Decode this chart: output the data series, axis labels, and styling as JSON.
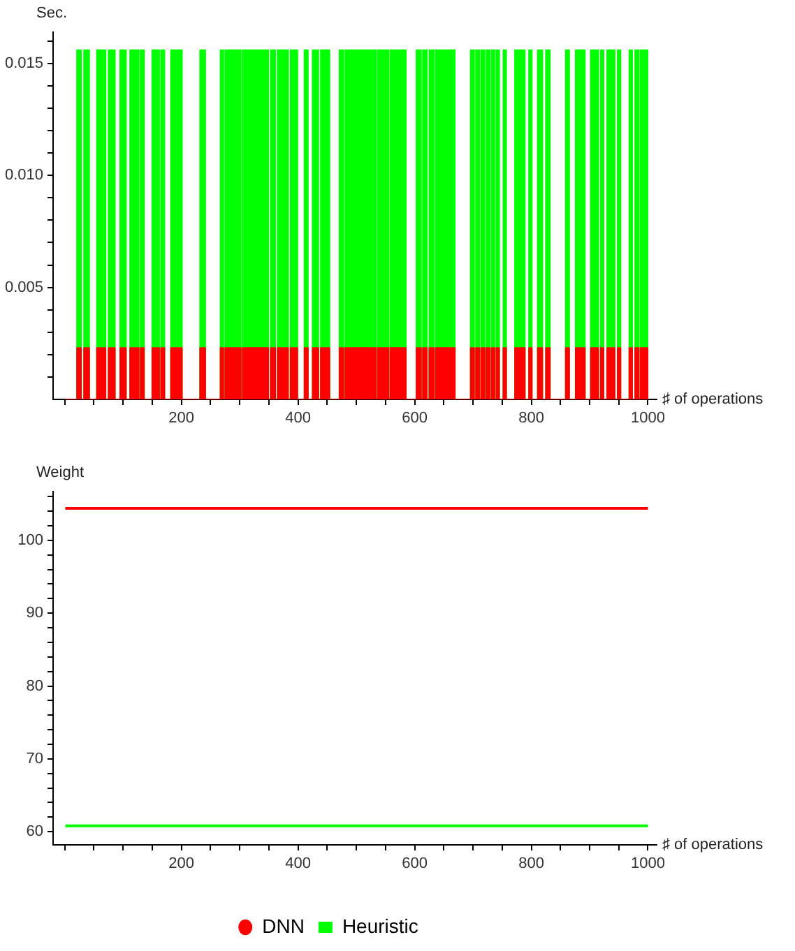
{
  "chart_data": [
    {
      "type": "area",
      "ylabel": "Sec.",
      "xlabel": "♯ of operations",
      "legend": false,
      "grid": false,
      "xlim": [
        -20,
        1015
      ],
      "ylim": [
        0,
        0.0164
      ],
      "xticks": [
        {
          "value": 0,
          "label": null
        },
        {
          "value": 50,
          "label": null
        },
        {
          "value": 100,
          "label": null
        },
        {
          "value": 150,
          "label": null
        },
        200,
        {
          "value": 250,
          "label": null
        },
        {
          "value": 300,
          "label": null
        },
        {
          "value": 350,
          "label": null
        },
        400,
        {
          "value": 450,
          "label": null
        },
        {
          "value": 500,
          "label": null
        },
        {
          "value": 550,
          "label": null
        },
        600,
        {
          "value": 650,
          "label": null
        },
        {
          "value": 700,
          "label": null
        },
        {
          "value": 750,
          "label": null
        },
        800,
        {
          "value": 850,
          "label": null
        },
        {
          "value": 900,
          "label": null
        },
        {
          "value": 950,
          "label": null
        },
        1000
      ],
      "yticks": [
        {
          "value": 0.001,
          "label": null
        },
        {
          "value": 0.002,
          "label": null
        },
        {
          "value": 0.003,
          "label": null
        },
        {
          "value": 0.004,
          "label": null
        },
        0.005,
        {
          "value": 0.006,
          "label": null
        },
        {
          "value": 0.007,
          "label": null
        },
        {
          "value": 0.008,
          "label": null
        },
        {
          "value": 0.009,
          "label": null
        },
        {
          "value": 0.01,
          "label": "0.010"
        },
        {
          "value": 0.011,
          "label": null
        },
        {
          "value": 0.012,
          "label": null
        },
        {
          "value": 0.013,
          "label": null
        },
        {
          "value": 0.014,
          "label": null
        },
        0.015,
        {
          "value": 0.016,
          "label": null
        }
      ],
      "x": [
        1,
        21,
        21,
        28,
        28,
        33,
        33,
        42,
        42,
        55,
        55,
        70,
        70,
        75,
        75,
        86,
        86,
        95,
        95,
        105,
        105,
        112,
        112,
        127,
        127,
        130,
        130,
        136,
        136,
        150,
        150,
        162,
        162,
        165,
        165,
        171,
        171,
        182,
        182,
        201,
        201,
        232,
        232,
        241,
        241,
        267,
        267,
        272,
        272,
        275,
        275,
        302,
        302,
        305,
        305,
        349,
        349,
        353,
        353,
        361,
        361,
        365,
        365,
        383,
        383,
        387,
        387,
        399,
        399,
        411,
        411,
        417,
        417,
        425,
        425,
        435,
        435,
        439,
        439,
        454,
        454,
        471,
        471,
        478,
        478,
        481,
        481,
        489,
        489,
        491,
        491,
        534,
        534,
        537,
        537,
        555,
        555,
        558,
        558,
        585,
        585,
        603,
        603,
        611,
        611,
        614,
        614,
        621,
        621,
        625,
        625,
        633,
        633,
        636,
        636,
        669,
        669,
        696,
        696,
        702,
        702,
        705,
        705,
        711,
        711,
        714,
        714,
        720,
        720,
        723,
        723,
        729,
        729,
        732,
        732,
        737,
        737,
        740,
        740,
        745,
        745,
        752,
        752,
        757,
        757,
        772,
        772,
        789,
        789,
        796,
        796,
        801,
        801,
        811,
        811,
        819,
        819,
        825,
        825,
        832,
        832,
        859,
        859,
        865,
        865,
        876,
        876,
        892,
        892,
        902,
        902,
        915,
        915,
        919,
        919,
        924,
        924,
        930,
        930,
        943,
        943,
        948,
        948,
        953,
        953,
        968,
        968,
        973,
        973,
        978,
        978,
        984,
        984,
        987,
        987,
        999,
        999,
        1000
      ],
      "series": [
        {
          "color": "#ff0000",
          "values": [
            0,
            0,
            0.0023,
            0.0023,
            0,
            0,
            0.0023,
            0.0023,
            0,
            0,
            0.0023,
            0.0023,
            0,
            0,
            0.0023,
            0.0023,
            0,
            0,
            0.0023,
            0.0023,
            0,
            0,
            0.0023,
            0.0023,
            0,
            0,
            0.0023,
            0.0023,
            0,
            0,
            0.0023,
            0.0023,
            0,
            0,
            0.0023,
            0.0023,
            0,
            0,
            0.0023,
            0.0023,
            0,
            0,
            0.0023,
            0.0023,
            0,
            0,
            0.0023,
            0.0023,
            0,
            0,
            0.0023,
            0.0023,
            0,
            0,
            0.0023,
            0.0023,
            0,
            0,
            0.0023,
            0.0023,
            0,
            0,
            0.0023,
            0.0023,
            0,
            0,
            0.0023,
            0.0023,
            0,
            0,
            0.0023,
            0.0023,
            0,
            0,
            0.0023,
            0.0023,
            0,
            0,
            0.0023,
            0.0023,
            0,
            0,
            0.0023,
            0.0023,
            0,
            0,
            0.0023,
            0.0023,
            0,
            0,
            0.0023,
            0.0023,
            0,
            0,
            0.0023,
            0.0023,
            0,
            0,
            0.0023,
            0.0023,
            0,
            0,
            0.0023,
            0.0023,
            0,
            0,
            0.0023,
            0.0023,
            0,
            0,
            0.0023,
            0.0023,
            0,
            0,
            0.0023,
            0.0023,
            0,
            0,
            0.0023,
            0.0023,
            0,
            0,
            0.0023,
            0.0023,
            0,
            0,
            0.0023,
            0.0023,
            0,
            0,
            0.0023,
            0.0023,
            0,
            0,
            0.0023,
            0.0023,
            0,
            0,
            0.0023,
            0.0023,
            0,
            0,
            0.0023,
            0.0023,
            0,
            0,
            0.0023,
            0.0023,
            0,
            0,
            0.0023,
            0.0023,
            0,
            0,
            0.0023,
            0.0023,
            0,
            0,
            0.0023,
            0.0023,
            0,
            0,
            0.0023,
            0.0023,
            0,
            0,
            0.0023,
            0.0023,
            0,
            0,
            0.0023,
            0.0023,
            0,
            0,
            0.0023,
            0.0023,
            0,
            0,
            0.0023,
            0.0023,
            0,
            0,
            0.0023,
            0.0023,
            0,
            0,
            0.0023,
            0.0023,
            0,
            0,
            0.0023,
            0.0023,
            0,
            0,
            0.0023,
            0.0023,
            0,
            0
          ]
        },
        {
          "color": "#00ff00",
          "values": [
            0,
            0,
            0.0156,
            0.0156,
            0,
            0,
            0.0156,
            0.0156,
            0,
            0,
            0.0156,
            0.0156,
            0,
            0,
            0.0156,
            0.0156,
            0,
            0,
            0.0156,
            0.0156,
            0,
            0,
            0.0156,
            0.0156,
            0,
            0,
            0.0156,
            0.0156,
            0,
            0,
            0.0156,
            0.0156,
            0,
            0,
            0.0156,
            0.0156,
            0,
            0,
            0.0156,
            0.0156,
            0,
            0,
            0.0156,
            0.0156,
            0,
            0,
            0.0156,
            0.0156,
            0,
            0,
            0.0156,
            0.0156,
            0,
            0,
            0.0156,
            0.0156,
            0,
            0,
            0.0156,
            0.0156,
            0,
            0,
            0.0156,
            0.0156,
            0,
            0,
            0.0156,
            0.0156,
            0,
            0,
            0.0156,
            0.0156,
            0,
            0,
            0.0156,
            0.0156,
            0,
            0,
            0.0156,
            0.0156,
            0,
            0,
            0.0156,
            0.0156,
            0,
            0,
            0.0156,
            0.0156,
            0,
            0,
            0.0156,
            0.0156,
            0,
            0,
            0.0156,
            0.0156,
            0,
            0,
            0.0156,
            0.0156,
            0,
            0,
            0.0156,
            0.0156,
            0,
            0,
            0.0156,
            0.0156,
            0,
            0,
            0.0156,
            0.0156,
            0,
            0,
            0.0156,
            0.0156,
            0,
            0,
            0.0156,
            0.0156,
            0,
            0,
            0.0156,
            0.0156,
            0,
            0,
            0.0156,
            0.0156,
            0,
            0,
            0.0156,
            0.0156,
            0,
            0,
            0.0156,
            0.0156,
            0,
            0,
            0.0156,
            0.0156,
            0,
            0,
            0.0156,
            0.0156,
            0,
            0,
            0.0156,
            0.0156,
            0,
            0,
            0.0156,
            0.0156,
            0,
            0,
            0.0156,
            0.0156,
            0,
            0,
            0.0156,
            0.0156,
            0,
            0,
            0.0156,
            0.0156,
            0,
            0,
            0.0156,
            0.0156,
            0,
            0,
            0.0156,
            0.0156,
            0,
            0,
            0.0156,
            0.0156,
            0,
            0,
            0.0156,
            0.0156,
            0,
            0,
            0.0156,
            0.0156,
            0,
            0,
            0.0156,
            0.0156,
            0,
            0,
            0.0156,
            0.0156,
            0,
            0,
            0.0156,
            0.0156,
            0,
            0
          ]
        }
      ]
    },
    {
      "type": "line",
      "ylabel": "Weight",
      "xlabel": "♯ of operations",
      "legend": "bottom",
      "grid": false,
      "xlim": [
        -20,
        1015
      ],
      "ylim": [
        58.2,
        106.7
      ],
      "xticks": [
        {
          "value": 0,
          "label": null
        },
        {
          "value": 50,
          "label": null
        },
        {
          "value": 100,
          "label": null
        },
        {
          "value": 150,
          "label": null
        },
        200,
        {
          "value": 250,
          "label": null
        },
        {
          "value": 300,
          "label": null
        },
        {
          "value": 350,
          "label": null
        },
        400,
        {
          "value": 450,
          "label": null
        },
        {
          "value": 500,
          "label": null
        },
        {
          "value": 550,
          "label": null
        },
        600,
        {
          "value": 650,
          "label": null
        },
        {
          "value": 700,
          "label": null
        },
        {
          "value": 750,
          "label": null
        },
        800,
        {
          "value": 850,
          "label": null
        },
        {
          "value": 900,
          "label": null
        },
        {
          "value": 950,
          "label": null
        },
        1000
      ],
      "yticks": [
        60,
        {
          "value": 62,
          "label": null
        },
        {
          "value": 64,
          "label": null
        },
        {
          "value": 66,
          "label": null
        },
        {
          "value": 68,
          "label": null
        },
        70,
        {
          "value": 72,
          "label": null
        },
        {
          "value": 74,
          "label": null
        },
        {
          "value": 76,
          "label": null
        },
        {
          "value": 78,
          "label": null
        },
        80,
        {
          "value": 82,
          "label": null
        },
        {
          "value": 84,
          "label": null
        },
        {
          "value": 86,
          "label": null
        },
        {
          "value": 88,
          "label": null
        },
        90,
        {
          "value": 92,
          "label": null
        },
        {
          "value": 94,
          "label": null
        },
        {
          "value": 96,
          "label": null
        },
        {
          "value": 98,
          "label": null
        },
        100,
        {
          "value": 102,
          "label": null
        },
        {
          "value": 104,
          "label": null
        },
        {
          "value": 106,
          "label": null
        }
      ],
      "x": [
        1,
        1000
      ],
      "series": [
        {
          "name": "DNN",
          "color": "#ff0000",
          "values": [
            104.4,
            104.4
          ]
        },
        {
          "name": "Heuristic",
          "color": "#00ff00",
          "values": [
            60.8,
            60.8
          ]
        }
      ]
    }
  ]
}
